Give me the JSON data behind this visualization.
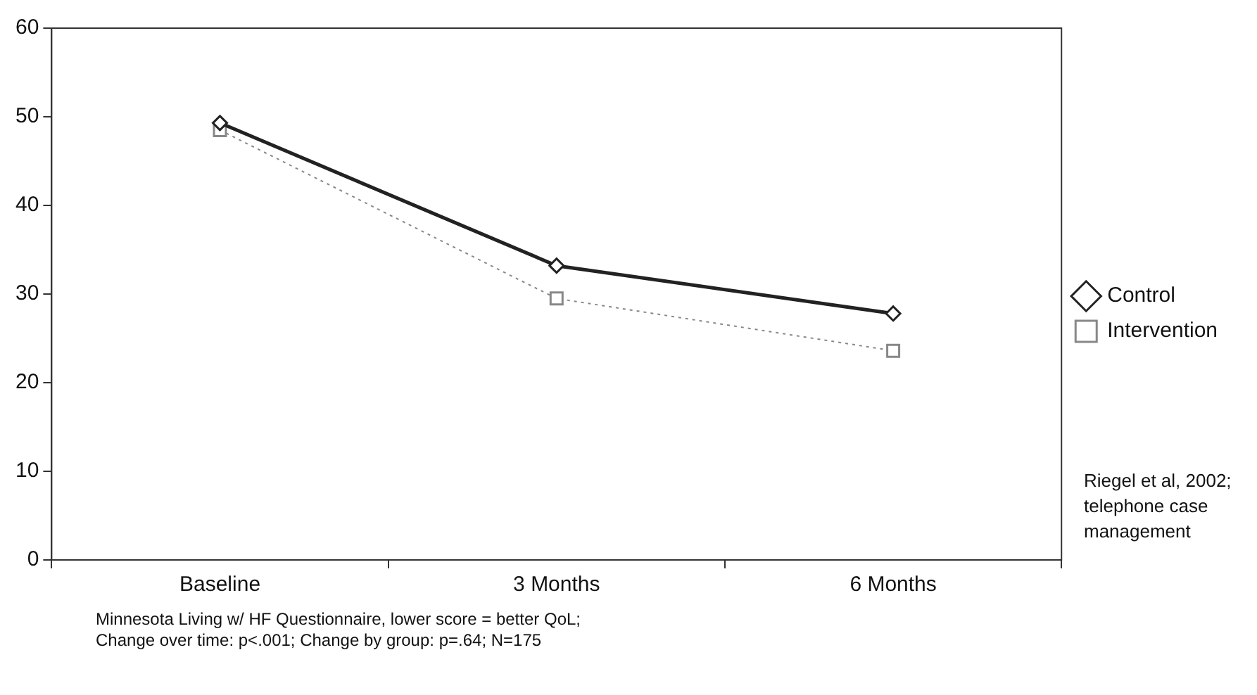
{
  "chart_data": {
    "type": "line",
    "categories": [
      "Baseline",
      "3 Months",
      "6 Months"
    ],
    "series": [
      {
        "name": "Control",
        "color": "#222222",
        "values": [
          49.3,
          33.2,
          27.8
        ],
        "marker": "diamond",
        "line_style": "solid"
      },
      {
        "name": "Intervention",
        "color": "#888888",
        "values": [
          48.5,
          29.5,
          23.6
        ],
        "marker": "square",
        "line_style": "dotted"
      }
    ],
    "ylim": [
      0,
      60
    ],
    "yticks": [
      0,
      10,
      20,
      30,
      40,
      50,
      60
    ],
    "grid": false,
    "legend": "right",
    "annotations": [
      "Riegel et al, 2002; telephone case management",
      "Minnesota Living w/ HF Questionnaire, lower score = better QoL;",
      "Change over time: p<.001; Change by group: p=.64; N=175"
    ]
  }
}
